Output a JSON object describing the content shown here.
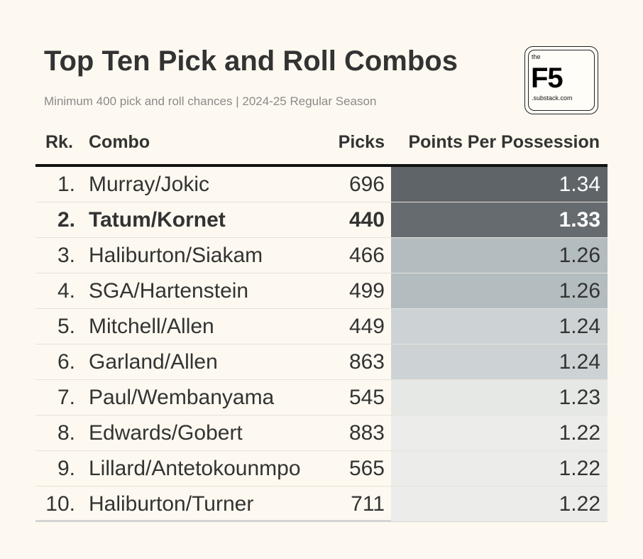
{
  "chart_data": {
    "type": "table",
    "title": "Top Ten Pick and Roll Combos",
    "subtitle": "Minimum 400 pick and roll chances | 2024-25 Regular Season",
    "columns": [
      "Rk.",
      "Combo",
      "Picks",
      "Points Per Possession"
    ],
    "rows": [
      {
        "rank": "1.",
        "combo": "Murray/Jokic",
        "picks": 696,
        "ppp": "1.34",
        "bg": "#5f6468",
        "fg": "#ffffff",
        "bold": false
      },
      {
        "rank": "2.",
        "combo": "Tatum/Kornet",
        "picks": 440,
        "ppp": "1.33",
        "bg": "#666b6f",
        "fg": "#ffffff",
        "bold": true
      },
      {
        "rank": "3.",
        "combo": "Haliburton/Siakam",
        "picks": 466,
        "ppp": "1.26",
        "bg": "#b3bcbf",
        "fg": "#333333",
        "bold": false
      },
      {
        "rank": "4.",
        "combo": "SGA/Hartenstein",
        "picks": 499,
        "ppp": "1.26",
        "bg": "#b3bcbf",
        "fg": "#333333",
        "bold": false
      },
      {
        "rank": "5.",
        "combo": "Mitchell/Allen",
        "picks": 449,
        "ppp": "1.24",
        "bg": "#cdd3d4",
        "fg": "#333333",
        "bold": false
      },
      {
        "rank": "6.",
        "combo": "Garland/Allen",
        "picks": 863,
        "ppp": "1.24",
        "bg": "#cdd3d4",
        "fg": "#333333",
        "bold": false
      },
      {
        "rank": "7.",
        "combo": "Paul/Wembanyama",
        "picks": 545,
        "ppp": "1.23",
        "bg": "#e6e8e6",
        "fg": "#333333",
        "bold": false
      },
      {
        "rank": "8.",
        "combo": "Edwards/Gobert",
        "picks": 883,
        "ppp": "1.22",
        "bg": "#ecedeb",
        "fg": "#333333",
        "bold": false
      },
      {
        "rank": "9.",
        "combo": "Lillard/Antetokounmpo",
        "picks": 565,
        "ppp": "1.22",
        "bg": "#ecedeb",
        "fg": "#333333",
        "bold": false
      },
      {
        "rank": "10.",
        "combo": "Haliburton/Turner",
        "picks": 711,
        "ppp": "1.22",
        "bg": "#ecedeb",
        "fg": "#333333",
        "bold": false
      }
    ]
  },
  "logo": {
    "small_top": "the",
    "main": "F5",
    "small_bottom": ".substack.com"
  },
  "colors": {
    "background": "#fdf9f0",
    "text": "#333333",
    "subtitle": "#8a8a8a"
  }
}
